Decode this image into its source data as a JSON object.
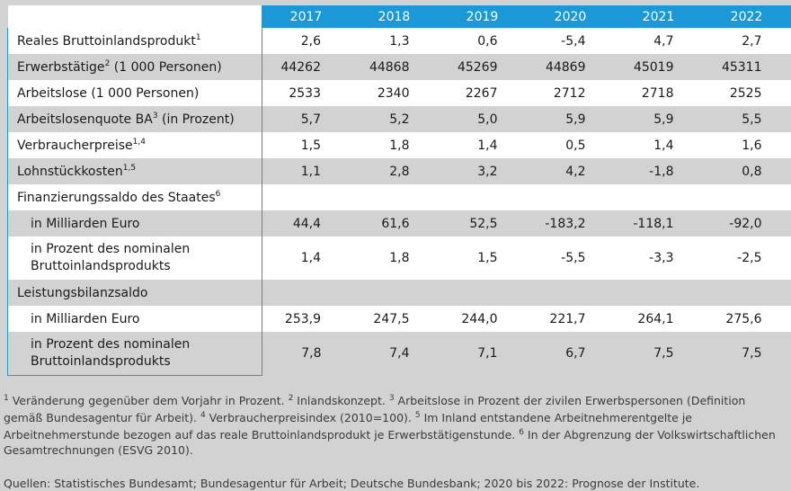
{
  "table": {
    "years": [
      "2017",
      "2018",
      "2019",
      "2020",
      "2021",
      "2022"
    ],
    "rows": [
      {
        "label": "Reales Bruttoinlandsprodukt",
        "sup": "1",
        "values": [
          "2,6",
          "1,3",
          "0,6",
          "-5,4",
          "4,7",
          "2,7"
        ]
      },
      {
        "label": "Erwerbstätige",
        "sup": "2",
        "label_suffix": " (1 000 Personen)",
        "values": [
          "44262",
          "44868",
          "45269",
          "44869",
          "45019",
          "45311"
        ]
      },
      {
        "label": "Arbeitslose (1 000 Personen)",
        "values": [
          "2533",
          "2340",
          "2267",
          "2712",
          "2718",
          "2525"
        ]
      },
      {
        "label": "Arbeitslosenquote BA",
        "sup": "3",
        "label_suffix": " (in Prozent)",
        "values": [
          "5,7",
          "5,2",
          "5,0",
          "5,9",
          "5,9",
          "5,5"
        ]
      },
      {
        "label": "Verbraucherpreise",
        "sup": "1,4",
        "values": [
          "1,5",
          "1,8",
          "1,4",
          "0,5",
          "1,4",
          "1,6"
        ]
      },
      {
        "label": "Lohnstückkosten",
        "sup": "1,5",
        "values": [
          "1,1",
          "2,8",
          "3,2",
          "4,2",
          "-1,8",
          "0,8"
        ]
      },
      {
        "label": "Finanzierungssaldo des Staates",
        "sup": "6",
        "values": []
      },
      {
        "label": "in Milliarden Euro",
        "values": [
          "44,4",
          "61,6",
          "52,5",
          "-183,2",
          "-118,1",
          "-92,0"
        ]
      },
      {
        "label": "in Prozent des nominalen Bruttoinlandsprodukts",
        "values": [
          "1,4",
          "1,8",
          "1,5",
          "-5,5",
          "-3,3",
          "-2,5"
        ]
      },
      {
        "label": "Leistungsbilanzsaldo",
        "values": []
      },
      {
        "label": "in Milliarden Euro",
        "values": [
          "253,9",
          "247,5",
          "244,0",
          "221,7",
          "264,1",
          "275,6"
        ]
      },
      {
        "label": "in Prozent des nominalen Bruttoinlandsprodukts",
        "values": [
          "7,8",
          "7,4",
          "7,1",
          "6,7",
          "7,5",
          "7,5"
        ]
      }
    ]
  },
  "footnotes": [
    {
      "num": "1",
      "text": " Veränderung gegenüber dem Vorjahr in Prozent. "
    },
    {
      "num": "2",
      "text": " Inlandskonzept. "
    },
    {
      "num": "3",
      "text": " Arbeitslose in Prozent der zivilen Erwerbspersonen (Definition gemäß Bundesagentur für Arbeit). "
    },
    {
      "num": "4",
      "text": " Verbraucherpreisindex (2010=100). "
    },
    {
      "num": "5",
      "text": " Im Inland entstandene Arbeitnehmerentgelte je Arbeitnehmerstunde bezogen auf das reale Bruttoinlandsprodukt je Erwerbstätigenstunde. "
    },
    {
      "num": "6",
      "text": " In der Abgrenzung der Volkswirtschaftlichen Gesamtrechnungen (ESVG 2010)."
    }
  ],
  "source": "Quellen: Statistisches Bundesamt; Bundesagentur für Arbeit; Deutsche Bundesbank; 2020 bis 2022: Prognose der Institute."
}
